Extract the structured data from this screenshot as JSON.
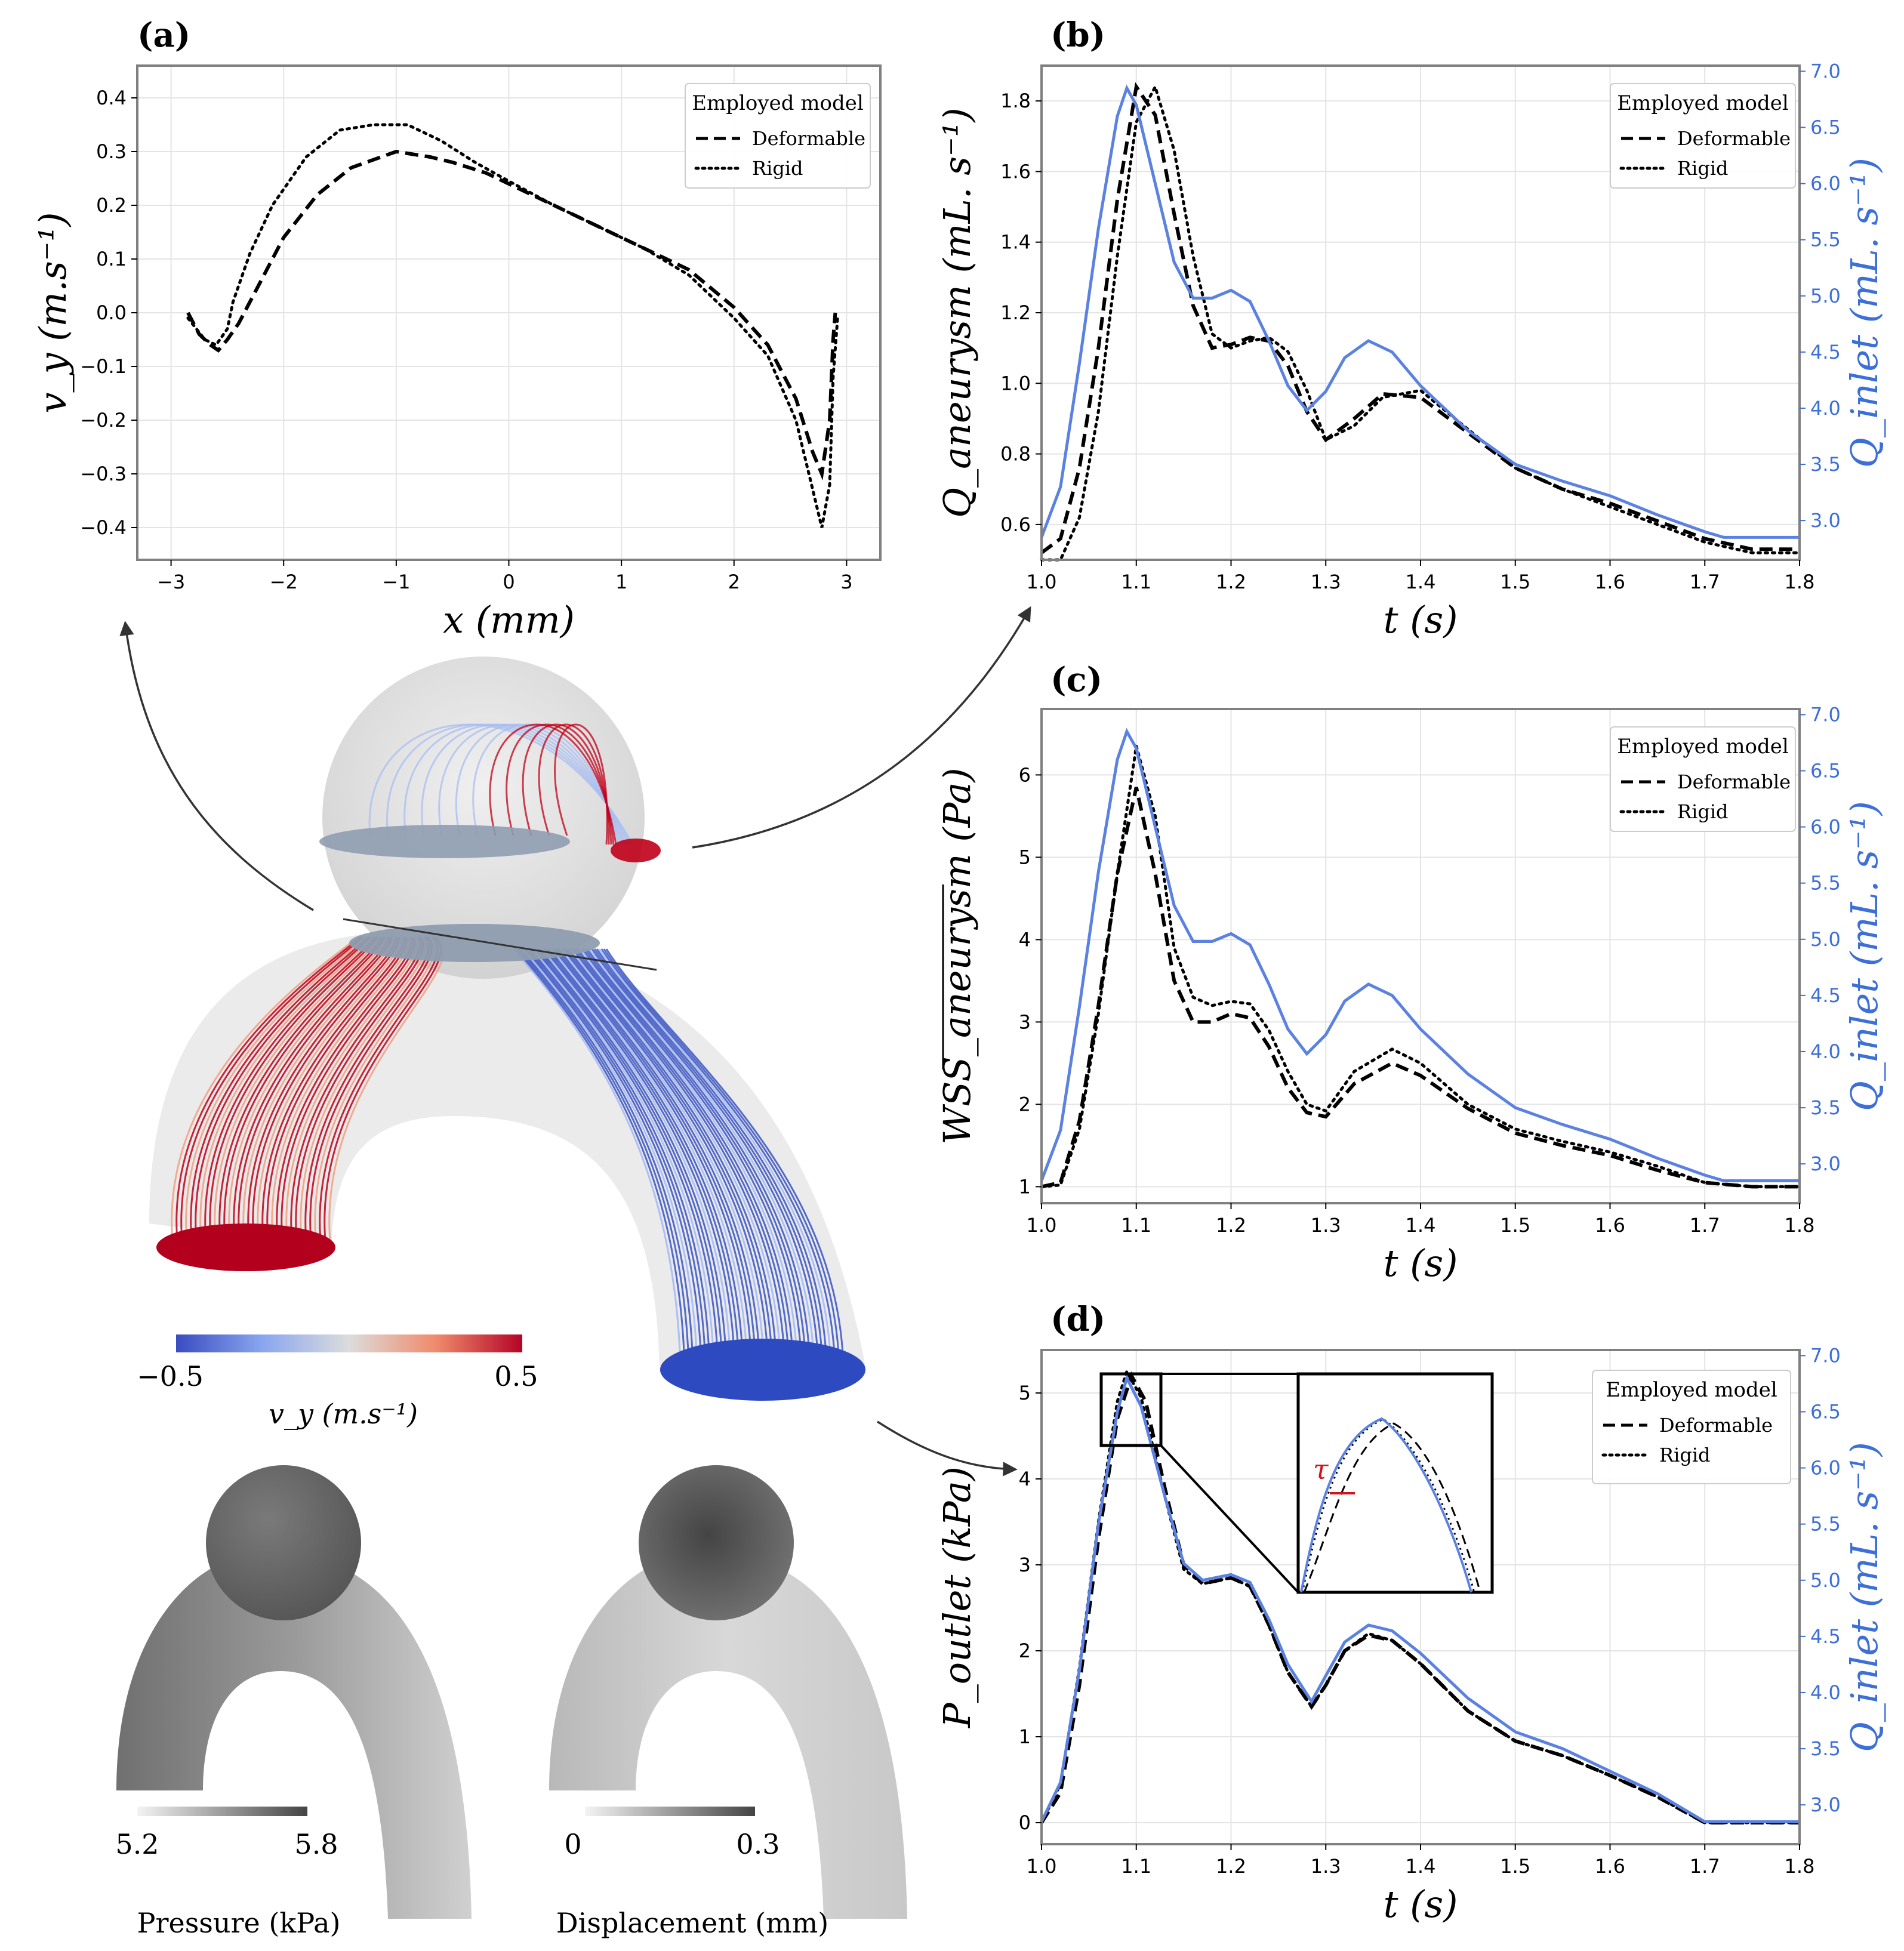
{
  "panels": {
    "a": {
      "label": "(a)"
    },
    "b": {
      "label": "(b)"
    },
    "c": {
      "label": "(c)"
    },
    "d": {
      "label": "(d)"
    }
  },
  "legend": {
    "title": "Employed model",
    "deformable": "Deformable",
    "rigid": "Rigid"
  },
  "colorbar_vy": {
    "min_label": "−0.5",
    "max_label": "0.5",
    "label": "v_y (m.s⁻¹)"
  },
  "pressure_bar": {
    "min_label": "5.2",
    "max_label": "5.8",
    "caption": "Pressure (kPa)"
  },
  "displacement_bar": {
    "min_label": "0",
    "max_label": "0.3",
    "caption": "Displacement (mm)"
  },
  "inset": {
    "tau_label": "τ"
  },
  "colors": {
    "deformable": "#000000",
    "rigid": "#000000",
    "inlet": "#5b82e0",
    "red": "#c0001a",
    "blue": "#2d4ac0"
  },
  "chart_data": [
    {
      "id": "a",
      "type": "line",
      "xlabel": "x (mm)",
      "ylabel": "v_y (m.s⁻¹)",
      "xlim": [
        -3.3,
        3.3
      ],
      "ylim": [
        -0.46,
        0.46
      ],
      "xticks": [
        -3,
        -2,
        -1,
        0,
        1,
        2,
        3
      ],
      "yticks": [
        -0.4,
        -0.3,
        -0.2,
        -0.1,
        0.0,
        0.1,
        0.2,
        0.3,
        0.4
      ],
      "ytick_labels": [
        "−0.4",
        "−0.3",
        "−0.2",
        "−0.1",
        "0.0",
        "0.1",
        "0.2",
        "0.3",
        "0.4"
      ],
      "xtick_labels": [
        "−3",
        "−2",
        "−1",
        "0",
        "1",
        "2",
        "3"
      ],
      "series": [
        {
          "name": "Deformable",
          "style": "dashed",
          "x": [
            -2.85,
            -2.75,
            -2.65,
            -2.58,
            -2.5,
            -2.4,
            -2.2,
            -2.0,
            -1.7,
            -1.4,
            -1.0,
            -0.7,
            -0.5,
            -0.2,
            0.0,
            0.4,
            0.8,
            1.2,
            1.6,
            2.0,
            2.3,
            2.55,
            2.7,
            2.78,
            2.85,
            2.88,
            2.9
          ],
          "y": [
            0.0,
            -0.04,
            -0.06,
            -0.07,
            -0.05,
            -0.02,
            0.06,
            0.14,
            0.22,
            0.27,
            0.3,
            0.29,
            0.28,
            0.26,
            0.24,
            0.2,
            0.16,
            0.12,
            0.08,
            0.01,
            -0.06,
            -0.16,
            -0.26,
            -0.3,
            -0.2,
            -0.05,
            0.0
          ]
        },
        {
          "name": "Rigid",
          "style": "dotted",
          "x": [
            -2.85,
            -2.7,
            -2.6,
            -2.5,
            -2.45,
            -2.3,
            -2.1,
            -1.8,
            -1.5,
            -1.2,
            -0.9,
            -0.6,
            -0.3,
            0.0,
            0.4,
            0.8,
            1.2,
            1.6,
            2.0,
            2.3,
            2.55,
            2.7,
            2.78,
            2.85,
            2.88,
            2.92
          ],
          "y": [
            -0.01,
            -0.05,
            -0.06,
            -0.03,
            0.02,
            0.11,
            0.2,
            0.29,
            0.34,
            0.35,
            0.35,
            0.32,
            0.28,
            0.245,
            0.2,
            0.16,
            0.12,
            0.07,
            -0.01,
            -0.08,
            -0.2,
            -0.33,
            -0.4,
            -0.32,
            -0.12,
            -0.01
          ]
        }
      ]
    },
    {
      "id": "b",
      "type": "line",
      "xlabel": "t (s)",
      "ylabel": "Q_aneurysm (mL. s⁻¹)",
      "y2label": "Q_inlet (mL. s⁻¹)",
      "xlim": [
        1.0,
        1.8
      ],
      "ylim": [
        0.5,
        1.9
      ],
      "y2lim": [
        2.65,
        7.05
      ],
      "xticks": [
        1.0,
        1.1,
        1.2,
        1.3,
        1.4,
        1.5,
        1.6,
        1.7,
        1.8
      ],
      "yticks": [
        0.6,
        0.8,
        1.0,
        1.2,
        1.4,
        1.6,
        1.8
      ],
      "y2ticks": [
        3.0,
        3.5,
        4.0,
        4.5,
        5.0,
        5.5,
        6.0,
        6.5,
        7.0
      ],
      "series": [
        {
          "name": "Deformable",
          "style": "dashed",
          "x": [
            1.0,
            1.02,
            1.04,
            1.06,
            1.08,
            1.1,
            1.12,
            1.14,
            1.16,
            1.18,
            1.2,
            1.22,
            1.24,
            1.26,
            1.28,
            1.3,
            1.33,
            1.36,
            1.4,
            1.45,
            1.5,
            1.55,
            1.6,
            1.65,
            1.7,
            1.75,
            1.8
          ],
          "y": [
            0.52,
            0.56,
            0.76,
            1.1,
            1.52,
            1.84,
            1.76,
            1.48,
            1.22,
            1.1,
            1.11,
            1.13,
            1.12,
            1.05,
            0.92,
            0.84,
            0.9,
            0.97,
            0.96,
            0.86,
            0.76,
            0.7,
            0.66,
            0.61,
            0.56,
            0.53,
            0.53
          ]
        },
        {
          "name": "Rigid",
          "style": "dotted",
          "x": [
            1.0,
            1.02,
            1.04,
            1.06,
            1.08,
            1.1,
            1.12,
            1.14,
            1.16,
            1.18,
            1.2,
            1.22,
            1.24,
            1.26,
            1.28,
            1.3,
            1.33,
            1.36,
            1.4,
            1.45,
            1.5,
            1.55,
            1.6,
            1.65,
            1.7,
            1.75,
            1.8
          ],
          "y": [
            0.5,
            0.5,
            0.62,
            0.92,
            1.36,
            1.74,
            1.84,
            1.66,
            1.36,
            1.14,
            1.1,
            1.12,
            1.13,
            1.09,
            0.98,
            0.84,
            0.88,
            0.96,
            0.98,
            0.87,
            0.76,
            0.7,
            0.65,
            0.6,
            0.55,
            0.52,
            0.52
          ]
        },
        {
          "name": "Inlet",
          "style": "solid",
          "axis": "y2",
          "x": [
            1.0,
            1.02,
            1.04,
            1.06,
            1.08,
            1.09,
            1.1,
            1.12,
            1.14,
            1.16,
            1.18,
            1.2,
            1.22,
            1.24,
            1.26,
            1.28,
            1.3,
            1.32,
            1.345,
            1.37,
            1.4,
            1.45,
            1.5,
            1.55,
            1.6,
            1.65,
            1.7,
            1.72,
            1.8
          ],
          "y": [
            2.85,
            3.3,
            4.4,
            5.6,
            6.6,
            6.85,
            6.7,
            6.0,
            5.3,
            4.98,
            4.98,
            5.05,
            4.95,
            4.6,
            4.2,
            3.98,
            4.15,
            4.45,
            4.6,
            4.5,
            4.2,
            3.8,
            3.5,
            3.35,
            3.22,
            3.05,
            2.9,
            2.85,
            2.85
          ]
        }
      ]
    },
    {
      "id": "c",
      "type": "line",
      "xlabel": "t (s)",
      "ylabel": "WSS_aneurysm (Pa)",
      "y2label": "Q_inlet (mL. s⁻¹)",
      "xlim": [
        1.0,
        1.8
      ],
      "ylim": [
        0.8,
        6.8
      ],
      "y2lim": [
        2.65,
        7.05
      ],
      "xticks": [
        1.0,
        1.1,
        1.2,
        1.3,
        1.4,
        1.5,
        1.6,
        1.7,
        1.8
      ],
      "yticks": [
        1,
        2,
        3,
        4,
        5,
        6
      ],
      "y2ticks": [
        3.0,
        3.5,
        4.0,
        4.5,
        5.0,
        5.5,
        6.0,
        6.5,
        7.0
      ],
      "series": [
        {
          "name": "Deformable",
          "style": "dashed",
          "x": [
            1.0,
            1.02,
            1.04,
            1.06,
            1.08,
            1.1,
            1.12,
            1.14,
            1.16,
            1.18,
            1.2,
            1.22,
            1.24,
            1.26,
            1.28,
            1.3,
            1.33,
            1.37,
            1.4,
            1.45,
            1.5,
            1.55,
            1.6,
            1.65,
            1.7,
            1.75,
            1.8
          ],
          "y": [
            1.0,
            1.05,
            1.8,
            3.2,
            4.8,
            5.85,
            4.8,
            3.5,
            3.0,
            3.0,
            3.1,
            3.05,
            2.7,
            2.2,
            1.9,
            1.85,
            2.25,
            2.5,
            2.35,
            1.95,
            1.65,
            1.5,
            1.38,
            1.2,
            1.05,
            1.0,
            1.0
          ]
        },
        {
          "name": "Rigid",
          "style": "dotted",
          "x": [
            1.0,
            1.02,
            1.04,
            1.06,
            1.08,
            1.1,
            1.12,
            1.14,
            1.16,
            1.18,
            1.2,
            1.22,
            1.24,
            1.26,
            1.28,
            1.3,
            1.33,
            1.37,
            1.4,
            1.45,
            1.5,
            1.55,
            1.6,
            1.65,
            1.7,
            1.75,
            1.8
          ],
          "y": [
            1.0,
            1.02,
            1.7,
            3.1,
            4.8,
            6.35,
            5.5,
            3.9,
            3.3,
            3.2,
            3.25,
            3.22,
            2.9,
            2.4,
            2.0,
            1.92,
            2.4,
            2.67,
            2.5,
            2.0,
            1.7,
            1.55,
            1.42,
            1.25,
            1.05,
            1.0,
            1.0
          ]
        },
        {
          "name": "Inlet",
          "style": "solid",
          "axis": "y2",
          "x": [
            1.0,
            1.02,
            1.04,
            1.06,
            1.08,
            1.09,
            1.1,
            1.12,
            1.14,
            1.16,
            1.18,
            1.2,
            1.22,
            1.24,
            1.26,
            1.28,
            1.3,
            1.32,
            1.345,
            1.37,
            1.4,
            1.45,
            1.5,
            1.55,
            1.6,
            1.65,
            1.7,
            1.72,
            1.8
          ],
          "y": [
            2.85,
            3.3,
            4.4,
            5.6,
            6.6,
            6.85,
            6.7,
            6.0,
            5.3,
            4.98,
            4.98,
            5.05,
            4.95,
            4.6,
            4.2,
            3.98,
            4.15,
            4.45,
            4.6,
            4.5,
            4.2,
            3.8,
            3.5,
            3.35,
            3.22,
            3.05,
            2.9,
            2.85,
            2.85
          ]
        }
      ]
    },
    {
      "id": "d",
      "type": "line",
      "xlabel": "t (s)",
      "ylabel": "P_outlet (kPa)",
      "y2label": "Q_inlet (mL. s⁻¹)",
      "xlim": [
        1.0,
        1.8
      ],
      "ylim": [
        -0.25,
        5.5
      ],
      "y2lim": [
        2.65,
        7.05
      ],
      "xticks": [
        1.0,
        1.1,
        1.2,
        1.3,
        1.4,
        1.5,
        1.6,
        1.7,
        1.8
      ],
      "yticks": [
        0,
        1,
        2,
        3,
        4,
        5
      ],
      "y2ticks": [
        3.0,
        3.5,
        4.0,
        4.5,
        5.0,
        5.5,
        6.0,
        6.5,
        7.0
      ],
      "series": [
        {
          "name": "Deformable",
          "style": "dashed",
          "x": [
            1.0,
            1.02,
            1.04,
            1.06,
            1.08,
            1.095,
            1.11,
            1.13,
            1.15,
            1.17,
            1.2,
            1.22,
            1.24,
            1.26,
            1.285,
            1.3,
            1.32,
            1.345,
            1.37,
            1.4,
            1.45,
            1.5,
            1.55,
            1.6,
            1.65,
            1.7,
            1.8
          ],
          "y": [
            0.0,
            0.35,
            1.6,
            3.3,
            4.7,
            5.2,
            4.9,
            3.9,
            3.0,
            2.78,
            2.85,
            2.75,
            2.3,
            1.75,
            1.35,
            1.6,
            2.0,
            2.18,
            2.12,
            1.85,
            1.3,
            0.95,
            0.78,
            0.55,
            0.3,
            0.0,
            0.0
          ]
        },
        {
          "name": "Rigid",
          "style": "dotted",
          "x": [
            1.0,
            1.02,
            1.04,
            1.06,
            1.08,
            1.09,
            1.105,
            1.13,
            1.15,
            1.17,
            1.2,
            1.22,
            1.24,
            1.26,
            1.285,
            1.3,
            1.32,
            1.345,
            1.37,
            1.4,
            1.45,
            1.5,
            1.55,
            1.6,
            1.65,
            1.7,
            1.8
          ],
          "y": [
            0.0,
            0.45,
            1.8,
            3.5,
            4.9,
            5.25,
            4.95,
            3.8,
            2.95,
            2.78,
            2.85,
            2.75,
            2.3,
            1.75,
            1.35,
            1.6,
            2.0,
            2.2,
            2.12,
            1.85,
            1.3,
            0.95,
            0.78,
            0.55,
            0.3,
            0.0,
            0.0
          ]
        },
        {
          "name": "Inlet",
          "style": "solid",
          "axis": "y2",
          "x": [
            1.0,
            1.02,
            1.04,
            1.06,
            1.08,
            1.09,
            1.105,
            1.13,
            1.15,
            1.17,
            1.2,
            1.22,
            1.24,
            1.26,
            1.285,
            1.3,
            1.32,
            1.345,
            1.37,
            1.4,
            1.45,
            1.5,
            1.55,
            1.6,
            1.65,
            1.7,
            1.8
          ],
          "y": [
            2.85,
            3.2,
            4.2,
            5.5,
            6.5,
            6.8,
            6.55,
            5.75,
            5.15,
            5.0,
            5.05,
            4.98,
            4.65,
            4.25,
            3.92,
            4.15,
            4.45,
            4.6,
            4.55,
            4.35,
            3.95,
            3.65,
            3.5,
            3.3,
            3.1,
            2.85,
            2.85
          ]
        }
      ]
    }
  ]
}
